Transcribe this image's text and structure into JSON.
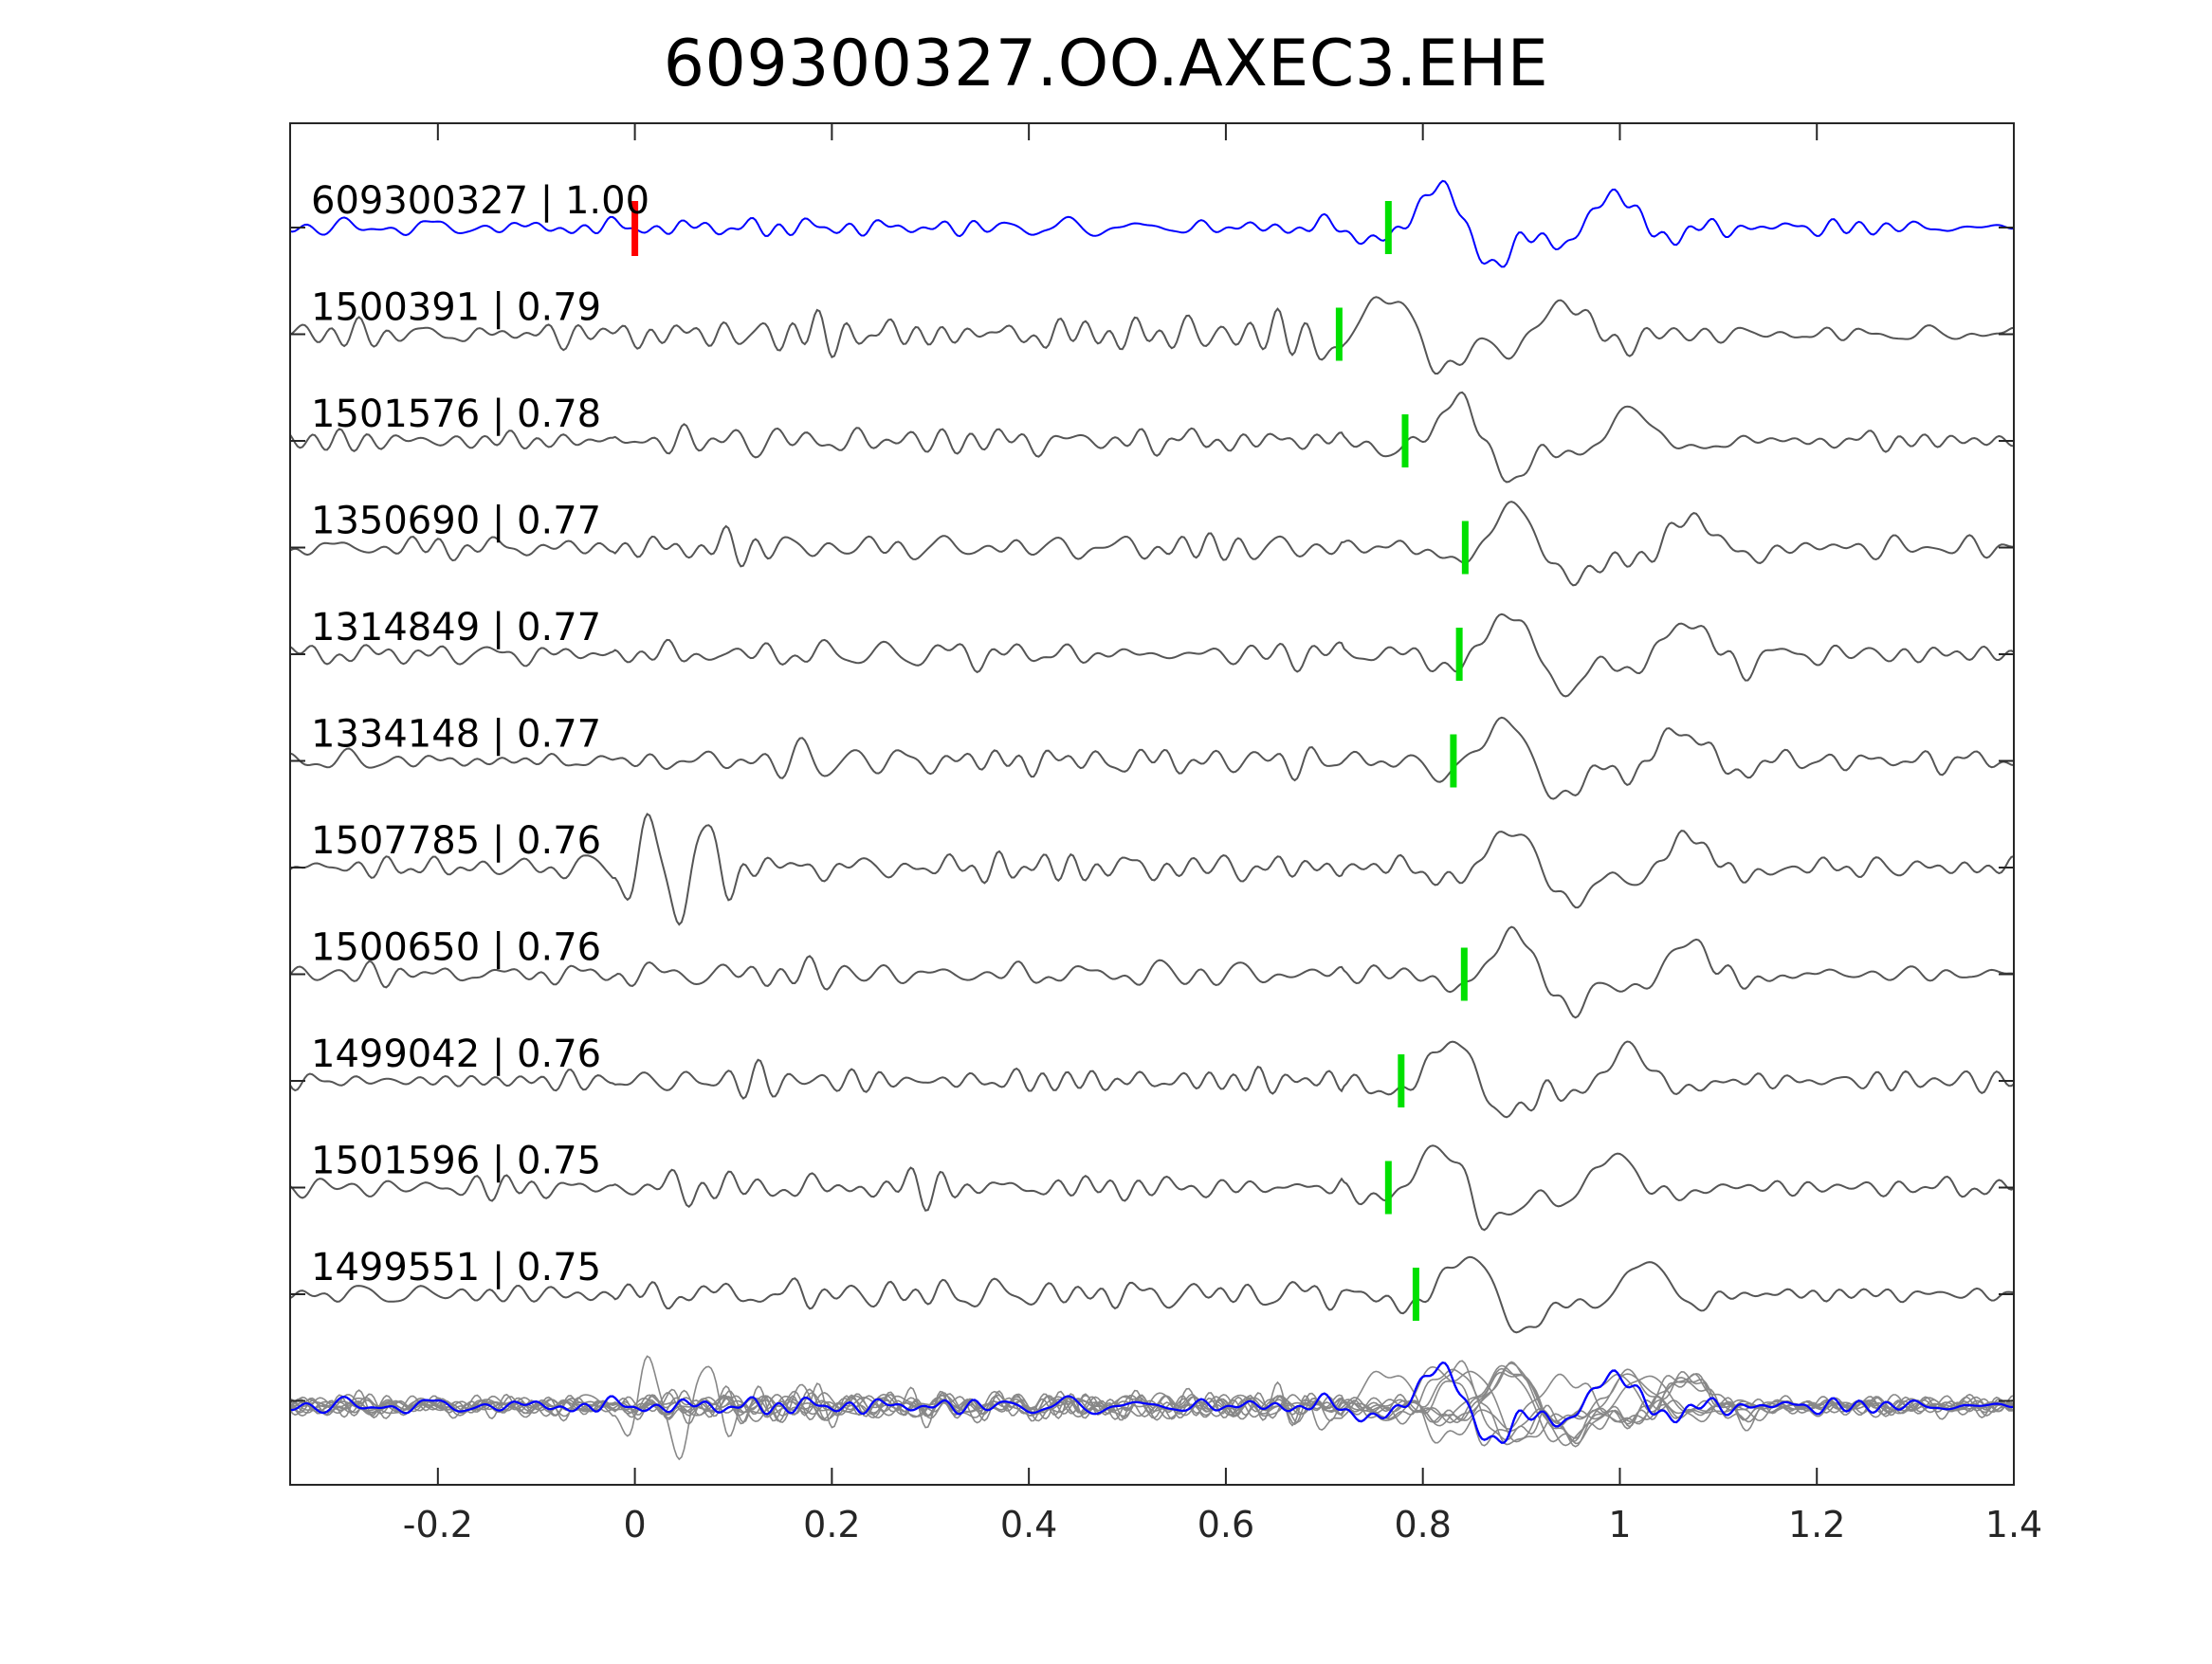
{
  "chart_data": {
    "type": "line",
    "title": "609300327.OO.AXEC3.EHE",
    "xlabel": "",
    "ylabel": "",
    "xlim": [
      -0.35,
      1.4
    ],
    "x_ticks": [
      "-0.2",
      "0",
      "0.2",
      "0.4",
      "0.6",
      "0.8",
      "1",
      "1.2",
      "1.4"
    ],
    "x_tick_values": [
      -0.2,
      0,
      0.2,
      0.4,
      0.6,
      0.8,
      1.0,
      1.2,
      1.4
    ],
    "grid": false,
    "legend": "none",
    "colors": {
      "template": "#0000ff",
      "neighbor": "#555555",
      "stack": "#888888",
      "origin_pick": "#ff0000",
      "phase_pick": "#00e000",
      "axis": "#262626"
    },
    "origin_pick_x": 0,
    "series": [
      {
        "label": "609300327 | 1.00",
        "pick_x": 0.765,
        "role": "template"
      },
      {
        "label": "1500391 | 0.79",
        "pick_x": 0.715,
        "role": "neighbor"
      },
      {
        "label": "1501576 | 0.78",
        "pick_x": 0.782,
        "role": "neighbor"
      },
      {
        "label": "1350690 | 0.77",
        "pick_x": 0.843,
        "role": "neighbor"
      },
      {
        "label": "1314849 | 0.77",
        "pick_x": 0.837,
        "role": "neighbor"
      },
      {
        "label": "1334148 | 0.77",
        "pick_x": 0.831,
        "role": "neighbor"
      },
      {
        "label": "1507785 | 0.76",
        "pick_x": null,
        "role": "neighbor"
      },
      {
        "label": "1500650 | 0.76",
        "pick_x": 0.842,
        "role": "neighbor"
      },
      {
        "label": "1499042 | 0.76",
        "pick_x": 0.778,
        "role": "neighbor"
      },
      {
        "label": "1501596 | 0.75",
        "pick_x": 0.765,
        "role": "neighbor"
      },
      {
        "label": "1499551 | 0.75",
        "pick_x": 0.793,
        "role": "neighbor"
      }
    ]
  }
}
